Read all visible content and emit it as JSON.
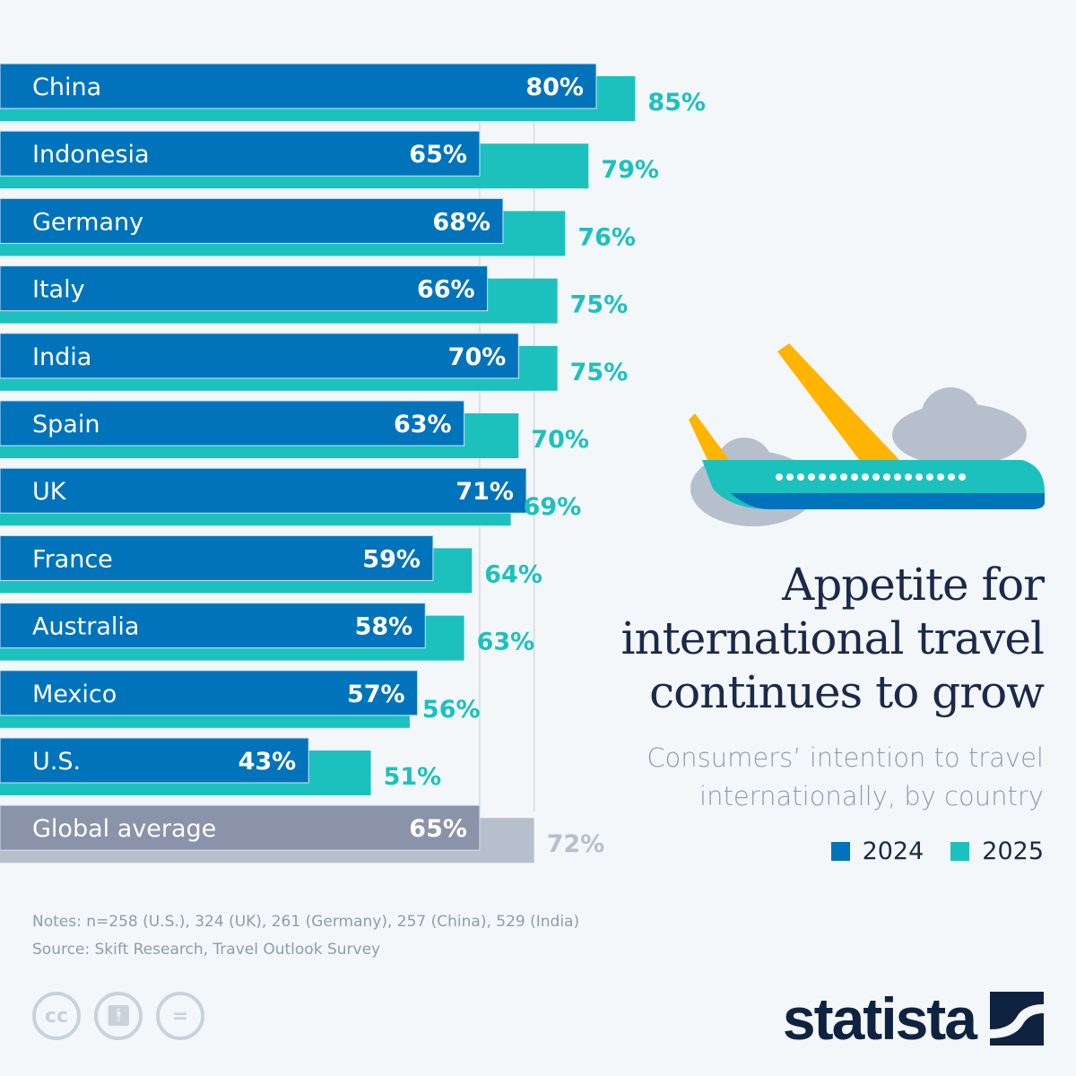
{
  "chart_data": {
    "type": "bar",
    "orientation": "horizontal",
    "categories": [
      "China",
      "Indonesia",
      "Germany",
      "Italy",
      "India",
      "Spain",
      "UK",
      "France",
      "Australia",
      "Mexico",
      "U.S.",
      "Global average"
    ],
    "series": [
      {
        "name": "2024",
        "values": [
          80,
          65,
          68,
          66,
          70,
          63,
          71,
          59,
          58,
          57,
          43,
          65
        ]
      },
      {
        "name": "2025",
        "values": [
          85,
          79,
          76,
          75,
          75,
          70,
          69,
          64,
          63,
          56,
          51,
          72
        ]
      }
    ],
    "value_labels_2024": [
      "80%",
      "65%",
      "68%",
      "66%",
      "70%",
      "63%",
      "71%",
      "59%",
      "58%",
      "57%",
      "43%",
      "65%"
    ],
    "value_labels_2025": [
      "85%",
      "79%",
      "76%",
      "75%",
      "75%",
      "70%",
      "69%",
      "64%",
      "63%",
      "56%",
      "51%",
      "72%"
    ],
    "title": "Appetite for international travel continues to grow",
    "subtitle": "Consumers’ intention to travel internationally, by country",
    "xlim": [
      0,
      100
    ],
    "grid": false,
    "reference_lines": [
      65,
      72
    ],
    "legend_position": "bottom-right",
    "colors": {
      "2024": "#0073bb",
      "2025": "#1cc1be",
      "global_2024": "#8a93aa",
      "global_2025": "#b8bfcc",
      "label_2025": "#1cc1be",
      "global_label_2025": "#b8bfcc"
    }
  },
  "title_lines": [
    "Appetite for",
    "international travel",
    "continues to grow"
  ],
  "subtitle_lines": [
    "Consumers’ intention to travel",
    "internationally, by country"
  ],
  "legend": [
    {
      "label": "2024",
      "color": "#0073bb"
    },
    {
      "label": "2025",
      "color": "#1cc1be"
    }
  ],
  "notes": "Notes: n=258 (U.S.), 324 (UK), 261 (Germany), 257 (China), 529 (India)",
  "source": "Source: Skift Research, Travel Outlook Survey",
  "license_icons": [
    "cc-icon",
    "attribution-icon",
    "no-derivatives-icon"
  ],
  "logo": {
    "text": "statista"
  }
}
